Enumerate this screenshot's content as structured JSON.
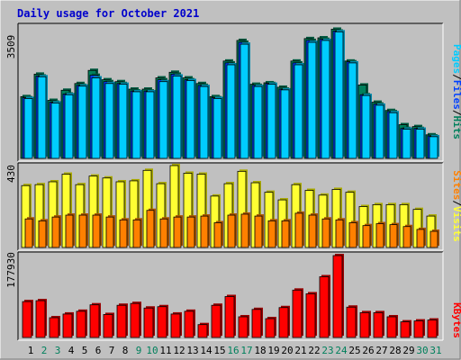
{
  "title": "Daily usage for October 2021",
  "colors": {
    "background": "#C0C0C0",
    "title": "#0000CC",
    "pages": "#00CCFF",
    "pages_side": "#0088AA",
    "files": "#0040FF",
    "hits": "#00805C",
    "hits_side": "#005A40",
    "visits": "#FFFF33",
    "visits_side": "#AAAA00",
    "sites": "#FF8000",
    "sites_side": "#AA5500",
    "kbytes": "#FF0000",
    "kbytes_side": "#990000",
    "weekend": "#00805C",
    "weekday": "#000000"
  },
  "chart_data": [
    {
      "type": "bar",
      "name_parts": [
        "Pages",
        "Files",
        "Hits"
      ],
      "max_label": "3509",
      "ylim": [
        0,
        3509
      ],
      "categories": [
        "1",
        "2",
        "3",
        "4",
        "5",
        "6",
        "7",
        "8",
        "9",
        "10",
        "11",
        "12",
        "13",
        "14",
        "15",
        "16",
        "17",
        "18",
        "19",
        "20",
        "21",
        "22",
        "23",
        "24",
        "25",
        "26",
        "27",
        "28",
        "29",
        "30",
        "31"
      ],
      "weekend": [
        false,
        true,
        true,
        false,
        false,
        false,
        false,
        false,
        true,
        true,
        false,
        false,
        false,
        false,
        false,
        true,
        true,
        false,
        false,
        false,
        false,
        false,
        true,
        true,
        false,
        false,
        false,
        false,
        false,
        true,
        true
      ],
      "series": [
        {
          "name": "Hits",
          "values": [
            1650,
            2250,
            1550,
            1820,
            2000,
            2350,
            2100,
            2050,
            1850,
            1850,
            2150,
            2300,
            2150,
            2000,
            1650,
            2600,
            3150,
            1980,
            2020,
            1900,
            2600,
            3200,
            3220,
            3450,
            2600,
            1960,
            1500,
            1280,
            900,
            850,
            630
          ]
        },
        {
          "name": "Files",
          "values": [
            1620,
            2200,
            1500,
            1720,
            1950,
            2220,
            2050,
            2000,
            1800,
            1800,
            2100,
            2250,
            2100,
            1950,
            1620,
            2550,
            3100,
            1950,
            2000,
            1850,
            2550,
            3150,
            3180,
            3400,
            2580,
            1700,
            1450,
            1250,
            800,
            800,
            600
          ]
        },
        {
          "name": "Pages",
          "values": [
            1600,
            2180,
            1480,
            1700,
            1930,
            2150,
            2000,
            1980,
            1780,
            1780,
            2050,
            2200,
            2080,
            1920,
            1600,
            2500,
            3050,
            1920,
            1980,
            1830,
            2500,
            3100,
            3150,
            3380,
            2550,
            1680,
            1420,
            1220,
            780,
            780,
            580
          ]
        }
      ]
    },
    {
      "type": "bar",
      "name_parts": [
        "Sites",
        "Visits"
      ],
      "max_label": "430",
      "ylim": [
        0,
        430
      ],
      "categories": [
        "1",
        "2",
        "3",
        "4",
        "5",
        "6",
        "7",
        "8",
        "9",
        "10",
        "11",
        "12",
        "13",
        "14",
        "15",
        "16",
        "17",
        "18",
        "19",
        "20",
        "21",
        "22",
        "23",
        "24",
        "25",
        "26",
        "27",
        "28",
        "29",
        "30",
        "31"
      ],
      "series": [
        {
          "name": "Visits",
          "values": [
            325,
            330,
            345,
            385,
            330,
            375,
            365,
            345,
            350,
            405,
            335,
            430,
            390,
            385,
            270,
            335,
            400,
            340,
            290,
            250,
            330,
            300,
            275,
            305,
            290,
            215,
            225,
            225,
            225,
            200,
            165
          ]
        },
        {
          "name": "Sites",
          "values": [
            150,
            140,
            160,
            170,
            170,
            170,
            160,
            145,
            145,
            195,
            150,
            160,
            160,
            165,
            130,
            170,
            175,
            165,
            140,
            140,
            180,
            170,
            150,
            145,
            130,
            115,
            125,
            120,
            110,
            95,
            85
          ]
        }
      ]
    },
    {
      "type": "bar",
      "name_parts": [
        "KBytes"
      ],
      "max_label": "177930",
      "ylim": [
        0,
        177930
      ],
      "categories": [
        "1",
        "2",
        "3",
        "4",
        "5",
        "6",
        "7",
        "8",
        "9",
        "10",
        "11",
        "12",
        "13",
        "14",
        "15",
        "16",
        "17",
        "18",
        "19",
        "20",
        "21",
        "22",
        "23",
        "24",
        "25",
        "26",
        "27",
        "28",
        "29",
        "30",
        "31"
      ],
      "series": [
        {
          "name": "KBytes",
          "values": [
            78000,
            80000,
            43000,
            51000,
            57000,
            71000,
            50000,
            70000,
            74000,
            64000,
            67000,
            51000,
            57000,
            28000,
            70000,
            89000,
            45000,
            61000,
            41000,
            65000,
            103000,
            95000,
            132000,
            177930,
            66000,
            54000,
            54000,
            45000,
            34000,
            36000,
            38000
          ]
        }
      ]
    }
  ]
}
